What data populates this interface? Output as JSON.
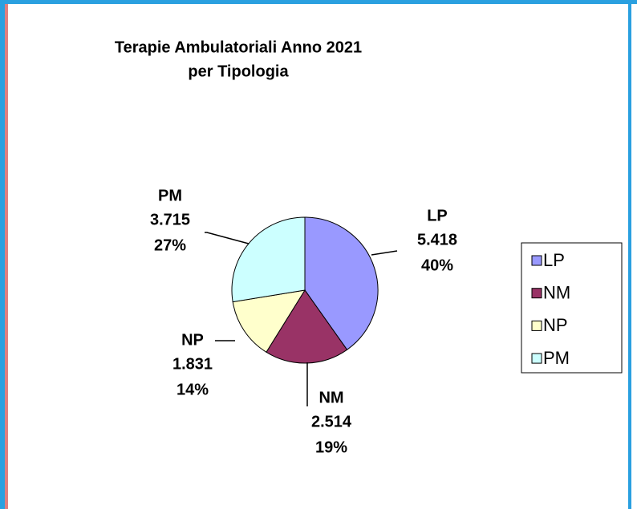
{
  "chart_data": {
    "type": "pie",
    "title": [
      "Terapie Ambulatoriali Anno 2021",
      "per Tipologia"
    ],
    "categories": [
      "LP",
      "NM",
      "NP",
      "PM"
    ],
    "values": [
      5418,
      2514,
      1831,
      3715
    ],
    "value_labels": [
      "5.418",
      "2.514",
      "1.831",
      "3.715"
    ],
    "percent_labels": [
      "40%",
      "19%",
      "14%",
      "27%"
    ],
    "colors": [
      "#9999ff",
      "#993366",
      "#ffffcc",
      "#ccffff"
    ],
    "legend": "right"
  }
}
